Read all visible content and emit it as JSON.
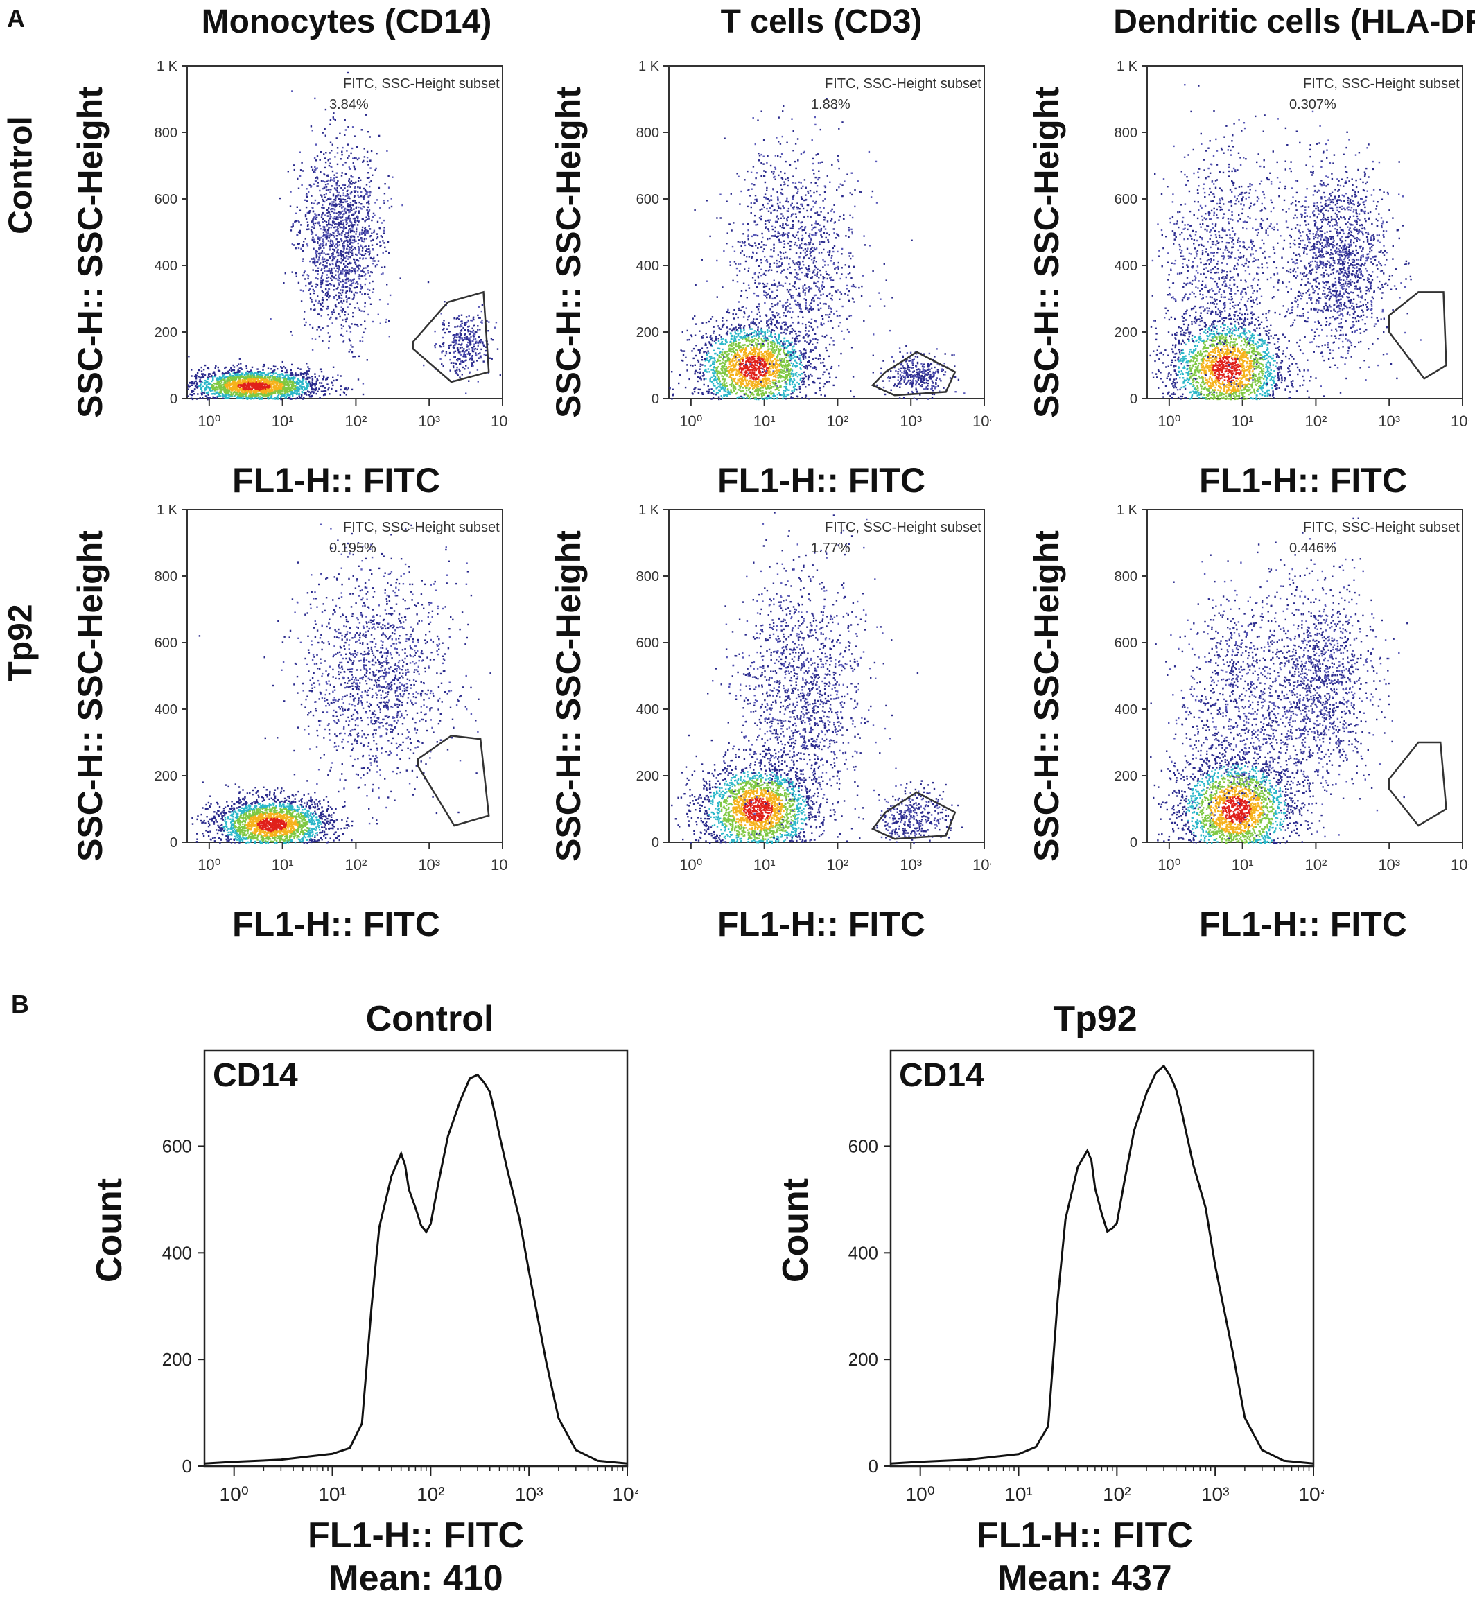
{
  "figure": {
    "panel_a_letter": "A",
    "panel_b_letter": "B",
    "columns": [
      "Monocytes (CD14)",
      "T cells (CD3)",
      "Dendritic cells (HLA-DR)"
    ],
    "rows": [
      "Control",
      "Tp92"
    ],
    "x_axis_label": "FL1-H:: FITC",
    "y_axis_label": "SSC-H:: SSC-Height",
    "gate_label": "FITC, SSC-Height subset"
  },
  "chart_data": [
    {
      "type": "scatter",
      "title": "Monocytes (CD14)",
      "row": "Control",
      "gate_percent": "3.84%",
      "xscale": "log",
      "xlim": [
        0.5,
        10000
      ],
      "ylim": [
        0,
        1000
      ],
      "yticks": [
        "0",
        "200",
        "400",
        "600",
        "800",
        "1 K"
      ],
      "populations": [
        {
          "cx": 4,
          "cy": 40,
          "sx": 0.45,
          "sy": 25,
          "n": 2200,
          "hot": true
        },
        {
          "cx": 60,
          "cy": 480,
          "sx": 0.28,
          "sy": 140,
          "n": 1500,
          "hot": false
        },
        {
          "cx": 3000,
          "cy": 170,
          "sx": 0.17,
          "sy": 45,
          "n": 350,
          "hot": false
        }
      ],
      "gate": [
        [
          600,
          170
        ],
        [
          1800,
          290
        ],
        [
          5500,
          320
        ],
        [
          6500,
          80
        ],
        [
          2000,
          50
        ],
        [
          600,
          150
        ]
      ]
    },
    {
      "type": "scatter",
      "title": "T cells (CD3)",
      "row": "Control",
      "gate_percent": "1.88%",
      "xscale": "log",
      "xlim": [
        0.5,
        10000
      ],
      "ylim": [
        0,
        1000
      ],
      "yticks": [
        "0",
        "200",
        "400",
        "600",
        "800",
        "1 K"
      ],
      "populations": [
        {
          "cx": 7,
          "cy": 95,
          "sx": 0.4,
          "sy": 70,
          "n": 2200,
          "hot": true
        },
        {
          "cx": 25,
          "cy": 420,
          "sx": 0.45,
          "sy": 170,
          "n": 1200,
          "hot": false
        },
        {
          "cx": 1200,
          "cy": 70,
          "sx": 0.2,
          "sy": 30,
          "n": 350,
          "hot": false
        }
      ],
      "gate": [
        [
          300,
          40
        ],
        [
          450,
          80
        ],
        [
          1200,
          140
        ],
        [
          4000,
          80
        ],
        [
          3000,
          20
        ],
        [
          600,
          10
        ]
      ]
    },
    {
      "type": "scatter",
      "title": "Dendritic cells (HLA-DR)",
      "row": "Control",
      "gate_percent": "0.307%",
      "xscale": "log",
      "xlim": [
        0.5,
        10000
      ],
      "ylim": [
        0,
        1000
      ],
      "yticks": [
        "0",
        "200",
        "400",
        "600",
        "800",
        "1 K"
      ],
      "populations": [
        {
          "cx": 6,
          "cy": 90,
          "sx": 0.4,
          "sy": 80,
          "n": 2200,
          "hot": true
        },
        {
          "cx": 5,
          "cy": 430,
          "sx": 0.4,
          "sy": 170,
          "n": 900,
          "hot": false
        },
        {
          "cx": 200,
          "cy": 420,
          "sx": 0.35,
          "sy": 140,
          "n": 1500,
          "hot": false
        }
      ],
      "gate": [
        [
          1000,
          250
        ],
        [
          2500,
          320
        ],
        [
          5500,
          320
        ],
        [
          6000,
          100
        ],
        [
          3000,
          60
        ],
        [
          1000,
          200
        ]
      ]
    },
    {
      "type": "scatter",
      "title": "Monocytes (CD14)",
      "row": "Tp92",
      "gate_percent": "0.195%",
      "xscale": "log",
      "xlim": [
        0.5,
        10000
      ],
      "ylim": [
        0,
        1000
      ],
      "yticks": [
        "0",
        "200",
        "400",
        "600",
        "800",
        "1 K"
      ],
      "populations": [
        {
          "cx": 7,
          "cy": 55,
          "sx": 0.4,
          "sy": 40,
          "n": 2300,
          "hot": true
        },
        {
          "cx": 180,
          "cy": 500,
          "sx": 0.5,
          "sy": 160,
          "n": 1400,
          "hot": false
        }
      ],
      "gate": [
        [
          700,
          250
        ],
        [
          2000,
          320
        ],
        [
          5000,
          310
        ],
        [
          6500,
          80
        ],
        [
          2200,
          50
        ],
        [
          700,
          230
        ]
      ]
    },
    {
      "type": "scatter",
      "title": "T cells (CD3)",
      "row": "Tp92",
      "gate_percent": "1.77%",
      "xscale": "log",
      "xlim": [
        0.5,
        10000
      ],
      "ylim": [
        0,
        1000
      ],
      "yticks": [
        "0",
        "200",
        "400",
        "600",
        "800",
        "1 K"
      ],
      "populations": [
        {
          "cx": 8,
          "cy": 100,
          "sx": 0.4,
          "sy": 70,
          "n": 2200,
          "hot": true
        },
        {
          "cx": 30,
          "cy": 450,
          "sx": 0.45,
          "sy": 180,
          "n": 1400,
          "hot": false
        },
        {
          "cx": 1100,
          "cy": 80,
          "sx": 0.22,
          "sy": 40,
          "n": 350,
          "hot": false
        }
      ],
      "gate": [
        [
          300,
          40
        ],
        [
          450,
          90
        ],
        [
          1200,
          150
        ],
        [
          4000,
          90
        ],
        [
          3000,
          20
        ],
        [
          600,
          10
        ]
      ]
    },
    {
      "type": "scatter",
      "title": "Dendritic cells (HLA-DR)",
      "row": "Tp92",
      "gate_percent": "0.446%",
      "xscale": "log",
      "xlim": [
        0.5,
        10000
      ],
      "ylim": [
        0,
        1000
      ],
      "yticks": [
        "0",
        "200",
        "400",
        "600",
        "800",
        "1 K"
      ],
      "populations": [
        {
          "cx": 8,
          "cy": 100,
          "sx": 0.4,
          "sy": 80,
          "n": 2200,
          "hot": true
        },
        {
          "cx": 10,
          "cy": 420,
          "sx": 0.45,
          "sy": 170,
          "n": 1000,
          "hot": false
        },
        {
          "cx": 120,
          "cy": 480,
          "sx": 0.35,
          "sy": 150,
          "n": 1200,
          "hot": false
        }
      ],
      "gate": [
        [
          1000,
          190
        ],
        [
          2500,
          300
        ],
        [
          5000,
          300
        ],
        [
          6000,
          100
        ],
        [
          2500,
          50
        ],
        [
          1000,
          160
        ]
      ]
    },
    {
      "type": "line",
      "title": "Control",
      "annotation": "CD14",
      "xlabel": "FL1-H:: FITC",
      "mean_label": "Mean: 410",
      "ylabel": "Count",
      "xscale": "log",
      "xlim": [
        0.5,
        10000
      ],
      "ylim": [
        0,
        780
      ],
      "yticks": [
        0,
        200,
        400,
        600
      ],
      "x": [
        0.5,
        1,
        3,
        10,
        15,
        20,
        25,
        30,
        40,
        50,
        55,
        60,
        70,
        80,
        90,
        100,
        120,
        150,
        200,
        250,
        300,
        350,
        400,
        450,
        500,
        600,
        800,
        1000,
        1500,
        2000,
        3000,
        5000,
        10000
      ],
      "y": [
        5,
        8,
        12,
        20,
        30,
        80,
        300,
        450,
        540,
        580,
        570,
        520,
        480,
        450,
        440,
        460,
        530,
        620,
        690,
        730,
        740,
        720,
        700,
        660,
        620,
        560,
        470,
        370,
        200,
        90,
        30,
        10,
        5
      ]
    },
    {
      "type": "line",
      "title": "Tp92",
      "annotation": "CD14",
      "xlabel": "FL1-H:: FITC",
      "mean_label": "Mean: 437",
      "ylabel": "Count",
      "xscale": "log",
      "xlim": [
        0.5,
        10000
      ],
      "ylim": [
        0,
        780
      ],
      "yticks": [
        0,
        200,
        400,
        600
      ],
      "x": [
        0.5,
        1,
        3,
        10,
        15,
        20,
        25,
        30,
        40,
        50,
        55,
        60,
        70,
        80,
        90,
        100,
        120,
        150,
        200,
        250,
        300,
        350,
        400,
        450,
        500,
        600,
        800,
        1000,
        1500,
        2000,
        3000,
        5000,
        10000
      ],
      "y": [
        5,
        8,
        12,
        20,
        30,
        80,
        310,
        460,
        560,
        590,
        570,
        520,
        470,
        440,
        440,
        460,
        540,
        630,
        700,
        740,
        745,
        730,
        710,
        670,
        630,
        570,
        480,
        380,
        210,
        95,
        30,
        10,
        5
      ]
    }
  ]
}
